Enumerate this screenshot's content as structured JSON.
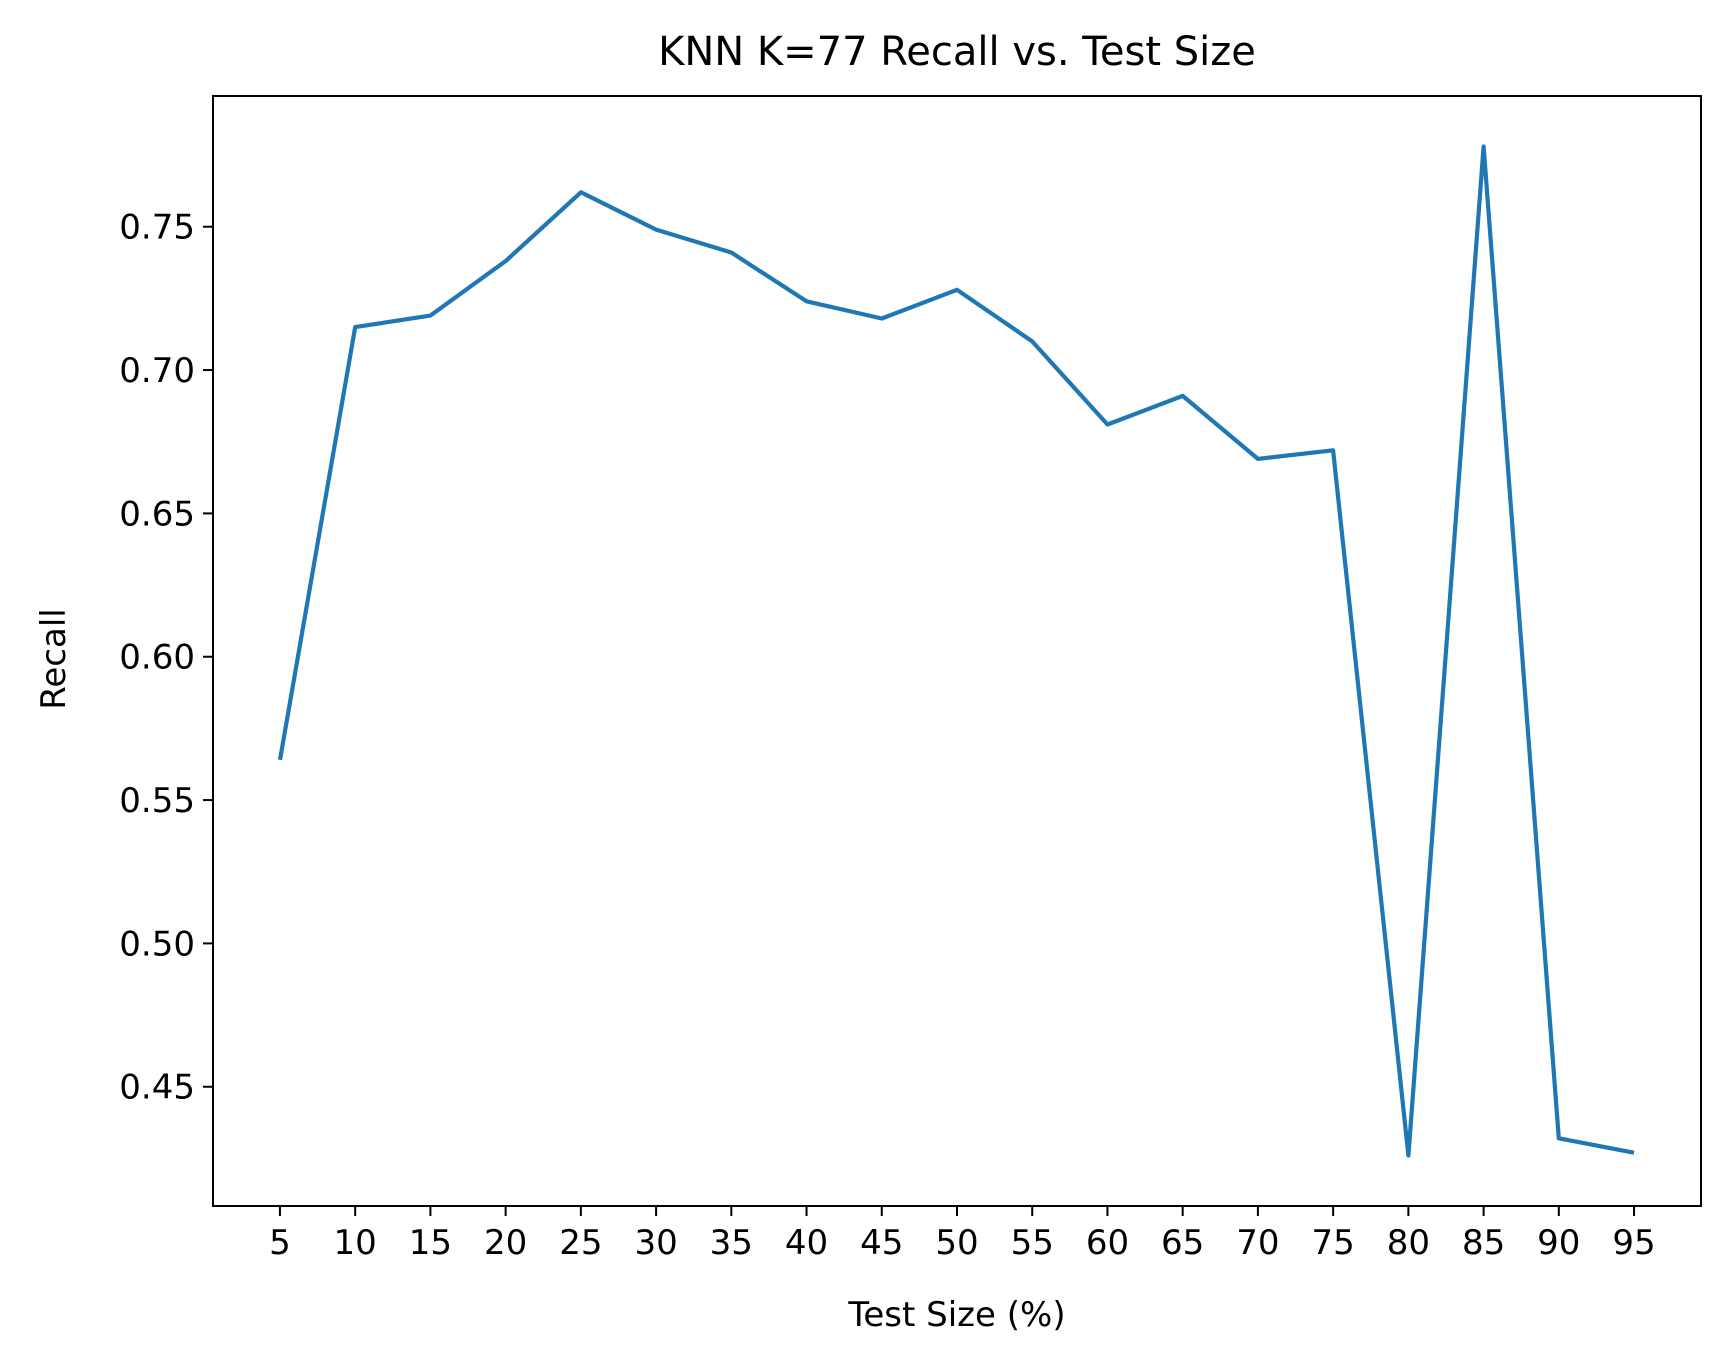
{
  "chart_data": {
    "type": "line",
    "title": "KNN K=77  Recall vs. Test Size",
    "xlabel": "Test Size (%)",
    "ylabel": "Recall",
    "x": [
      5,
      10,
      15,
      20,
      25,
      30,
      35,
      40,
      45,
      50,
      55,
      60,
      65,
      70,
      75,
      80,
      85,
      90,
      95
    ],
    "series": [
      {
        "values": [
          0.564,
          0.715,
          0.719,
          0.738,
          0.762,
          0.749,
          0.741,
          0.724,
          0.718,
          0.728,
          0.71,
          0.681,
          0.691,
          0.669,
          0.672,
          0.426,
          0.778,
          0.432,
          0.427
        ]
      }
    ],
    "xticks": [
      "5",
      "10",
      "15",
      "20",
      "25",
      "30",
      "35",
      "40",
      "45",
      "50",
      "55",
      "60",
      "65",
      "70",
      "75",
      "80",
      "85",
      "90",
      "95"
    ],
    "yticks": [
      0.45,
      0.5,
      0.55,
      0.6,
      0.65,
      0.7,
      0.75
    ],
    "xlim": [
      0.55,
      99.45
    ],
    "ylim": [
      0.4084,
      0.7956
    ],
    "grid": false,
    "line_color": "#1f77b4"
  }
}
